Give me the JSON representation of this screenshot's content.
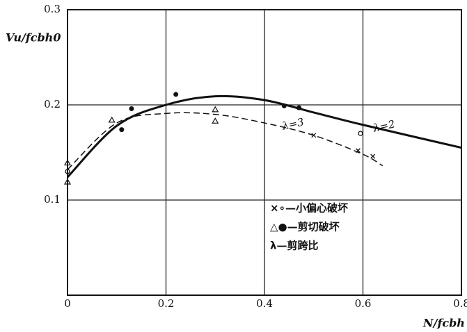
{
  "chart_data": {
    "type": "scatter",
    "y_label": "Vu/fcbh0",
    "x_label": "N/fcbh",
    "xlim": [
      0,
      0.8
    ],
    "xticks": [
      0,
      0.2,
      0.4,
      0.6,
      0.8
    ],
    "ylim": [
      0,
      0.3
    ],
    "yticks": [
      0.1,
      0.2,
      0.3
    ],
    "grid": true,
    "series": [
      {
        "name": "λ=2",
        "style": "solid",
        "color": "#111",
        "x": [
          0,
          0.1,
          0.2,
          0.3,
          0.4,
          0.5,
          0.6,
          0.8
        ],
        "values": [
          0.124,
          0.178,
          0.2,
          0.209,
          0.205,
          0.192,
          0.179,
          0.155
        ]
      },
      {
        "name": "λ=3",
        "style": "dashed",
        "color": "#111",
        "x": [
          0,
          0.1,
          0.2,
          0.3,
          0.4,
          0.5,
          0.6,
          0.64
        ],
        "values": [
          0.132,
          0.181,
          0.191,
          0.19,
          0.181,
          0.168,
          0.148,
          0.136
        ]
      },
      {
        "marker": "cross",
        "color": "#111",
        "x": [
          0.5,
          0.59,
          0.62
        ],
        "values": [
          0.168,
          0.152,
          0.146
        ]
      },
      {
        "marker": "open-circle",
        "color": "#111",
        "x": [
          0,
          0.595
        ],
        "values": [
          0.13,
          0.17
        ]
      },
      {
        "marker": "open-triangle",
        "color": "#111",
        "x": [
          0,
          0,
          0.09,
          0.3,
          0.3
        ],
        "values": [
          0.139,
          0.119,
          0.184,
          0.195,
          0.183
        ]
      },
      {
        "marker": "filled-circle",
        "color": "#111",
        "x": [
          0.11,
          0.13,
          0.22,
          0.44,
          0.47
        ],
        "values": [
          0.174,
          0.196,
          0.211,
          0.199,
          0.197
        ]
      }
    ],
    "legend": [
      "×∘—小偏心破坏",
      "△●—剪切破坏",
      "λ—剪跨比"
    ]
  }
}
